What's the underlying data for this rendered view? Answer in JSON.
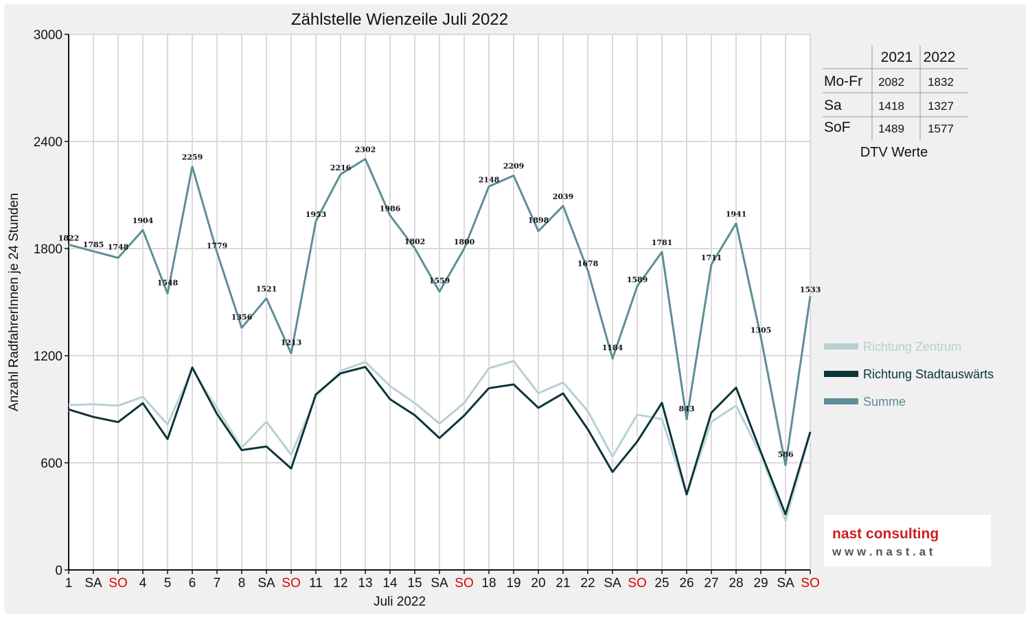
{
  "chart_data": {
    "type": "line",
    "title": "Zählstelle Wienzeile Juli 2022",
    "xlabel": "Juli 2022",
    "ylabel": "Anzahl RadfahrerInnen je 24 Stunden",
    "ylim": [
      0,
      3000
    ],
    "yticks": [
      "0",
      "600",
      "1200",
      "1800",
      "2400",
      "3000"
    ],
    "categories": [
      "1",
      "SA",
      "SO",
      "4",
      "5",
      "6",
      "7",
      "8",
      "SA",
      "SO",
      "11",
      "12",
      "13",
      "14",
      "15",
      "SA",
      "SO",
      "18",
      "19",
      "20",
      "21",
      "22",
      "SA",
      "SO",
      "25",
      "26",
      "27",
      "28",
      "29",
      "SA",
      "SO"
    ],
    "weekend_color_categories": [
      2,
      9,
      16,
      23,
      30
    ],
    "grid": true,
    "legend_position": "right",
    "series": [
      {
        "name": "Richtung Zentrum",
        "color": "#b7d0d2",
        "values": [
          923,
          928,
          920,
          970,
          815,
          1125,
          905,
          685,
          830,
          645,
          970,
          1115,
          1165,
          1030,
          935,
          820,
          935,
          1130,
          1170,
          990,
          1050,
          890,
          635,
          870,
          845,
          420,
          830,
          920,
          645,
          275,
          760
        ]
      },
      {
        "name": "Richtung Stadtauswärts",
        "color": "#0b3538",
        "values": [
          899,
          857,
          828,
          934,
          733,
          1134,
          874,
          671,
          691,
          568,
          983,
          1101,
          1137,
          956,
          867,
          739,
          865,
          1018,
          1039,
          908,
          989,
          788,
          549,
          719,
          936,
          423,
          881,
          1021,
          660,
          311,
          773
        ]
      },
      {
        "name": "Summe",
        "color": "#5e8e96",
        "values": [
          1822,
          1785,
          1748,
          1904,
          1548,
          2259,
          1779,
          1356,
          1521,
          1213,
          1953,
          2216,
          2302,
          1986,
          1802,
          1559,
          1800,
          2148,
          2209,
          1898,
          2039,
          1678,
          1184,
          1589,
          1781,
          843,
          1711,
          1941,
          1305,
          586,
          1533
        ]
      }
    ],
    "data_labels": [
      "1822",
      "1785",
      "1748",
      "1904",
      "1548",
      "2259",
      "1779",
      "1356",
      "1521",
      "1213",
      "1953",
      "2216",
      "2302",
      "1986",
      "1802",
      "1559",
      "1800",
      "2148",
      "2209",
      "1898",
      "2039",
      "1678",
      "1184",
      "1589",
      "1781",
      "843",
      "1711",
      "1941",
      "1305",
      "586",
      "1533"
    ]
  },
  "dtv_table": {
    "headers": [
      "",
      "2021",
      "2022"
    ],
    "rows": [
      [
        "Mo-Fr",
        "2082",
        "1832"
      ],
      [
        "Sa",
        "1418",
        "1327"
      ],
      [
        "SoF",
        "1489",
        "1577"
      ]
    ],
    "caption": "DTV Werte"
  },
  "logo": {
    "name": "nast consulting",
    "url": "w w w . n a s t . a t"
  },
  "colors": {
    "weekend_text": "#e00000",
    "grid": "#d9d9d9",
    "logo_red": "#cc1f1f",
    "logo_gray": "#555555"
  }
}
